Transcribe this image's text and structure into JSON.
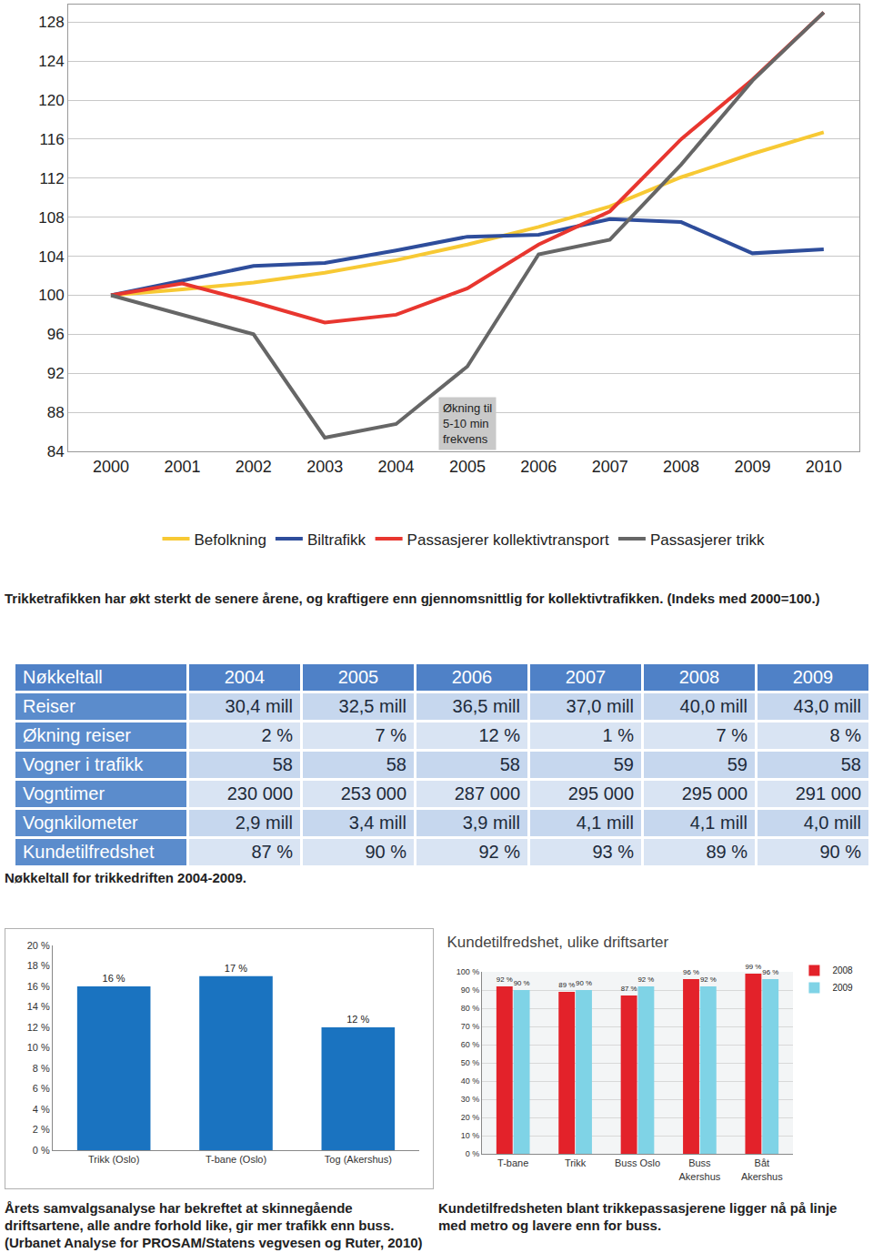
{
  "chart_data": [
    {
      "type": "line",
      "x": [
        2000,
        2001,
        2002,
        2003,
        2004,
        2005,
        2006,
        2007,
        2008,
        2009,
        2010
      ],
      "xlim": [
        1999.4,
        2010.5
      ],
      "xticks": [
        2000,
        2001,
        2002,
        2003,
        2004,
        2005,
        2006,
        2007,
        2008,
        2009,
        2010
      ],
      "ylim": [
        84,
        129.8
      ],
      "yticks": [
        84,
        88,
        92,
        96,
        100,
        104,
        108,
        112,
        116,
        120,
        124,
        128
      ],
      "grid": true,
      "legend": "bottom",
      "series": [
        {
          "name": "Befolkning",
          "color": "#f7c934",
          "values": [
            100,
            100.6,
            101.3,
            102.3,
            103.6,
            105.2,
            107.0,
            109.1,
            112.1,
            114.5,
            116.7
          ]
        },
        {
          "name": "Biltrafikk",
          "color": "#2e4d9b",
          "values": [
            100,
            101.5,
            103.0,
            103.3,
            104.6,
            106.0,
            106.2,
            107.8,
            107.5,
            104.3,
            104.7
          ]
        },
        {
          "name": "Passasjerer kollektivtransport",
          "color": "#e8362f",
          "values": [
            100,
            101.2,
            99.3,
            97.2,
            98.0,
            100.7,
            105.2,
            108.6,
            116.0,
            122.1,
            129.0
          ]
        },
        {
          "name": "Passasjerer trikk",
          "color": "#666666",
          "values": [
            100,
            98.0,
            96.0,
            85.4,
            86.8,
            92.7,
            104.2,
            105.7,
            113.4,
            122.0,
            129.0
          ]
        }
      ],
      "annotations": [
        {
          "text": "Økning til\n5-10 min\nfrekvens",
          "x": 2005,
          "y": 86.8
        }
      ]
    },
    {
      "type": "bar",
      "categories": [
        "Trikk (Oslo)",
        "T-bane (Oslo)",
        "Tog (Akershus)"
      ],
      "values": [
        16,
        17,
        12
      ],
      "value_labels": [
        "16 %",
        "17 %",
        "12 %"
      ],
      "data_labels": true,
      "color": "#1a73c0",
      "ylim": [
        0,
        20
      ],
      "yticks": [
        {
          "value": 0,
          "label": "0 %"
        },
        {
          "value": 2,
          "label": "2 %"
        },
        {
          "value": 4,
          "label": "4 %"
        },
        {
          "value": 6,
          "label": "6 %"
        },
        {
          "value": 8,
          "label": "8 %"
        },
        {
          "value": 10,
          "label": "10 %"
        },
        {
          "value": 12,
          "label": "12 %"
        },
        {
          "value": 14,
          "label": "14 %"
        },
        {
          "value": 16,
          "label": "16 %"
        },
        {
          "value": 18,
          "label": "18 %"
        },
        {
          "value": 20,
          "label": "20 %"
        }
      ],
      "grid": false
    },
    {
      "type": "bar",
      "title": "Kundetilfredshet, ulike driftsarter",
      "categories": [
        "T-bane",
        "Trikk",
        "Buss Oslo",
        "Buss\nAkershus",
        "Båt\nAkershus"
      ],
      "series": [
        {
          "name": "2008",
          "color": "#e3222a",
          "values": [
            92,
            89,
            87,
            96,
            99
          ],
          "value_labels": [
            "92 %",
            "89 %",
            "87 %",
            "96 %",
            "99 %"
          ]
        },
        {
          "name": "2009",
          "color": "#7fd3e6",
          "values": [
            90,
            90,
            92,
            92,
            96
          ],
          "value_labels": [
            "90 %",
            "90 %",
            "92 %",
            "92 %",
            "96 %"
          ]
        }
      ],
      "data_labels": true,
      "legend": "top right",
      "ylim": [
        0,
        100
      ],
      "yticks": [
        {
          "value": 0,
          "label": "0 %"
        },
        {
          "value": 10,
          "label": "10 %"
        },
        {
          "value": 20,
          "label": "20 %"
        },
        {
          "value": 30,
          "label": "30 %"
        },
        {
          "value": 40,
          "label": "40 %"
        },
        {
          "value": 50,
          "label": "50 %"
        },
        {
          "value": 60,
          "label": "60 %"
        },
        {
          "value": 70,
          "label": "70 %"
        },
        {
          "value": 80,
          "label": "80 %"
        },
        {
          "value": 90,
          "label": "90 %"
        },
        {
          "value": 100,
          "label": "100 %"
        }
      ],
      "grid": true
    }
  ],
  "table": {
    "header": [
      "Nøkkeltall",
      "2004",
      "2005",
      "2006",
      "2007",
      "2008",
      "2009"
    ],
    "rows": [
      [
        "Reiser",
        "30,4 mill",
        "32,5 mill",
        "36,5 mill",
        "37,0 mill",
        "40,0 mill",
        "43,0 mill"
      ],
      [
        "Økning reiser",
        "2 %",
        "7 %",
        "12 %",
        "1 %",
        "7 %",
        "8 %"
      ],
      [
        "Vogner i trafikk",
        "58",
        "58",
        "58",
        "59",
        "59",
        "58"
      ],
      [
        "Vogntimer",
        "230 000",
        "253 000",
        "287 000",
        "295 000",
        "295 000",
        "291 000"
      ],
      [
        "Vognkilometer",
        "2,9 mill",
        "3,4 mill",
        "3,9 mill",
        "4,1 mill",
        "4,1 mill",
        "4,0 mill"
      ],
      [
        "Kundetilfredshet",
        "87 %",
        "90 %",
        "92 %",
        "93 %",
        "89 %",
        "90 %"
      ]
    ]
  },
  "captions": {
    "line_chart": "Trikketrafikken har økt sterkt de senere årene, og kraftigere enn gjennomsnittlig for kollektivtrafikken. (Indeks med 2000=100.)",
    "table": "Nøkkeltall for trikkedriften 2004-2009.",
    "left_bars": "Årets samvalgsanalyse har bekreftet at skinnegående driftsartene, alle andre forhold like, gir mer trafikk enn buss. (Urbanet Analyse for PROSAM/Statens vegvesen og Ruter, 2010)",
    "right_bars": "Kundetilfredsheten blant trikkepassasjerene ligger nå på linje med metro og lavere enn for buss."
  }
}
